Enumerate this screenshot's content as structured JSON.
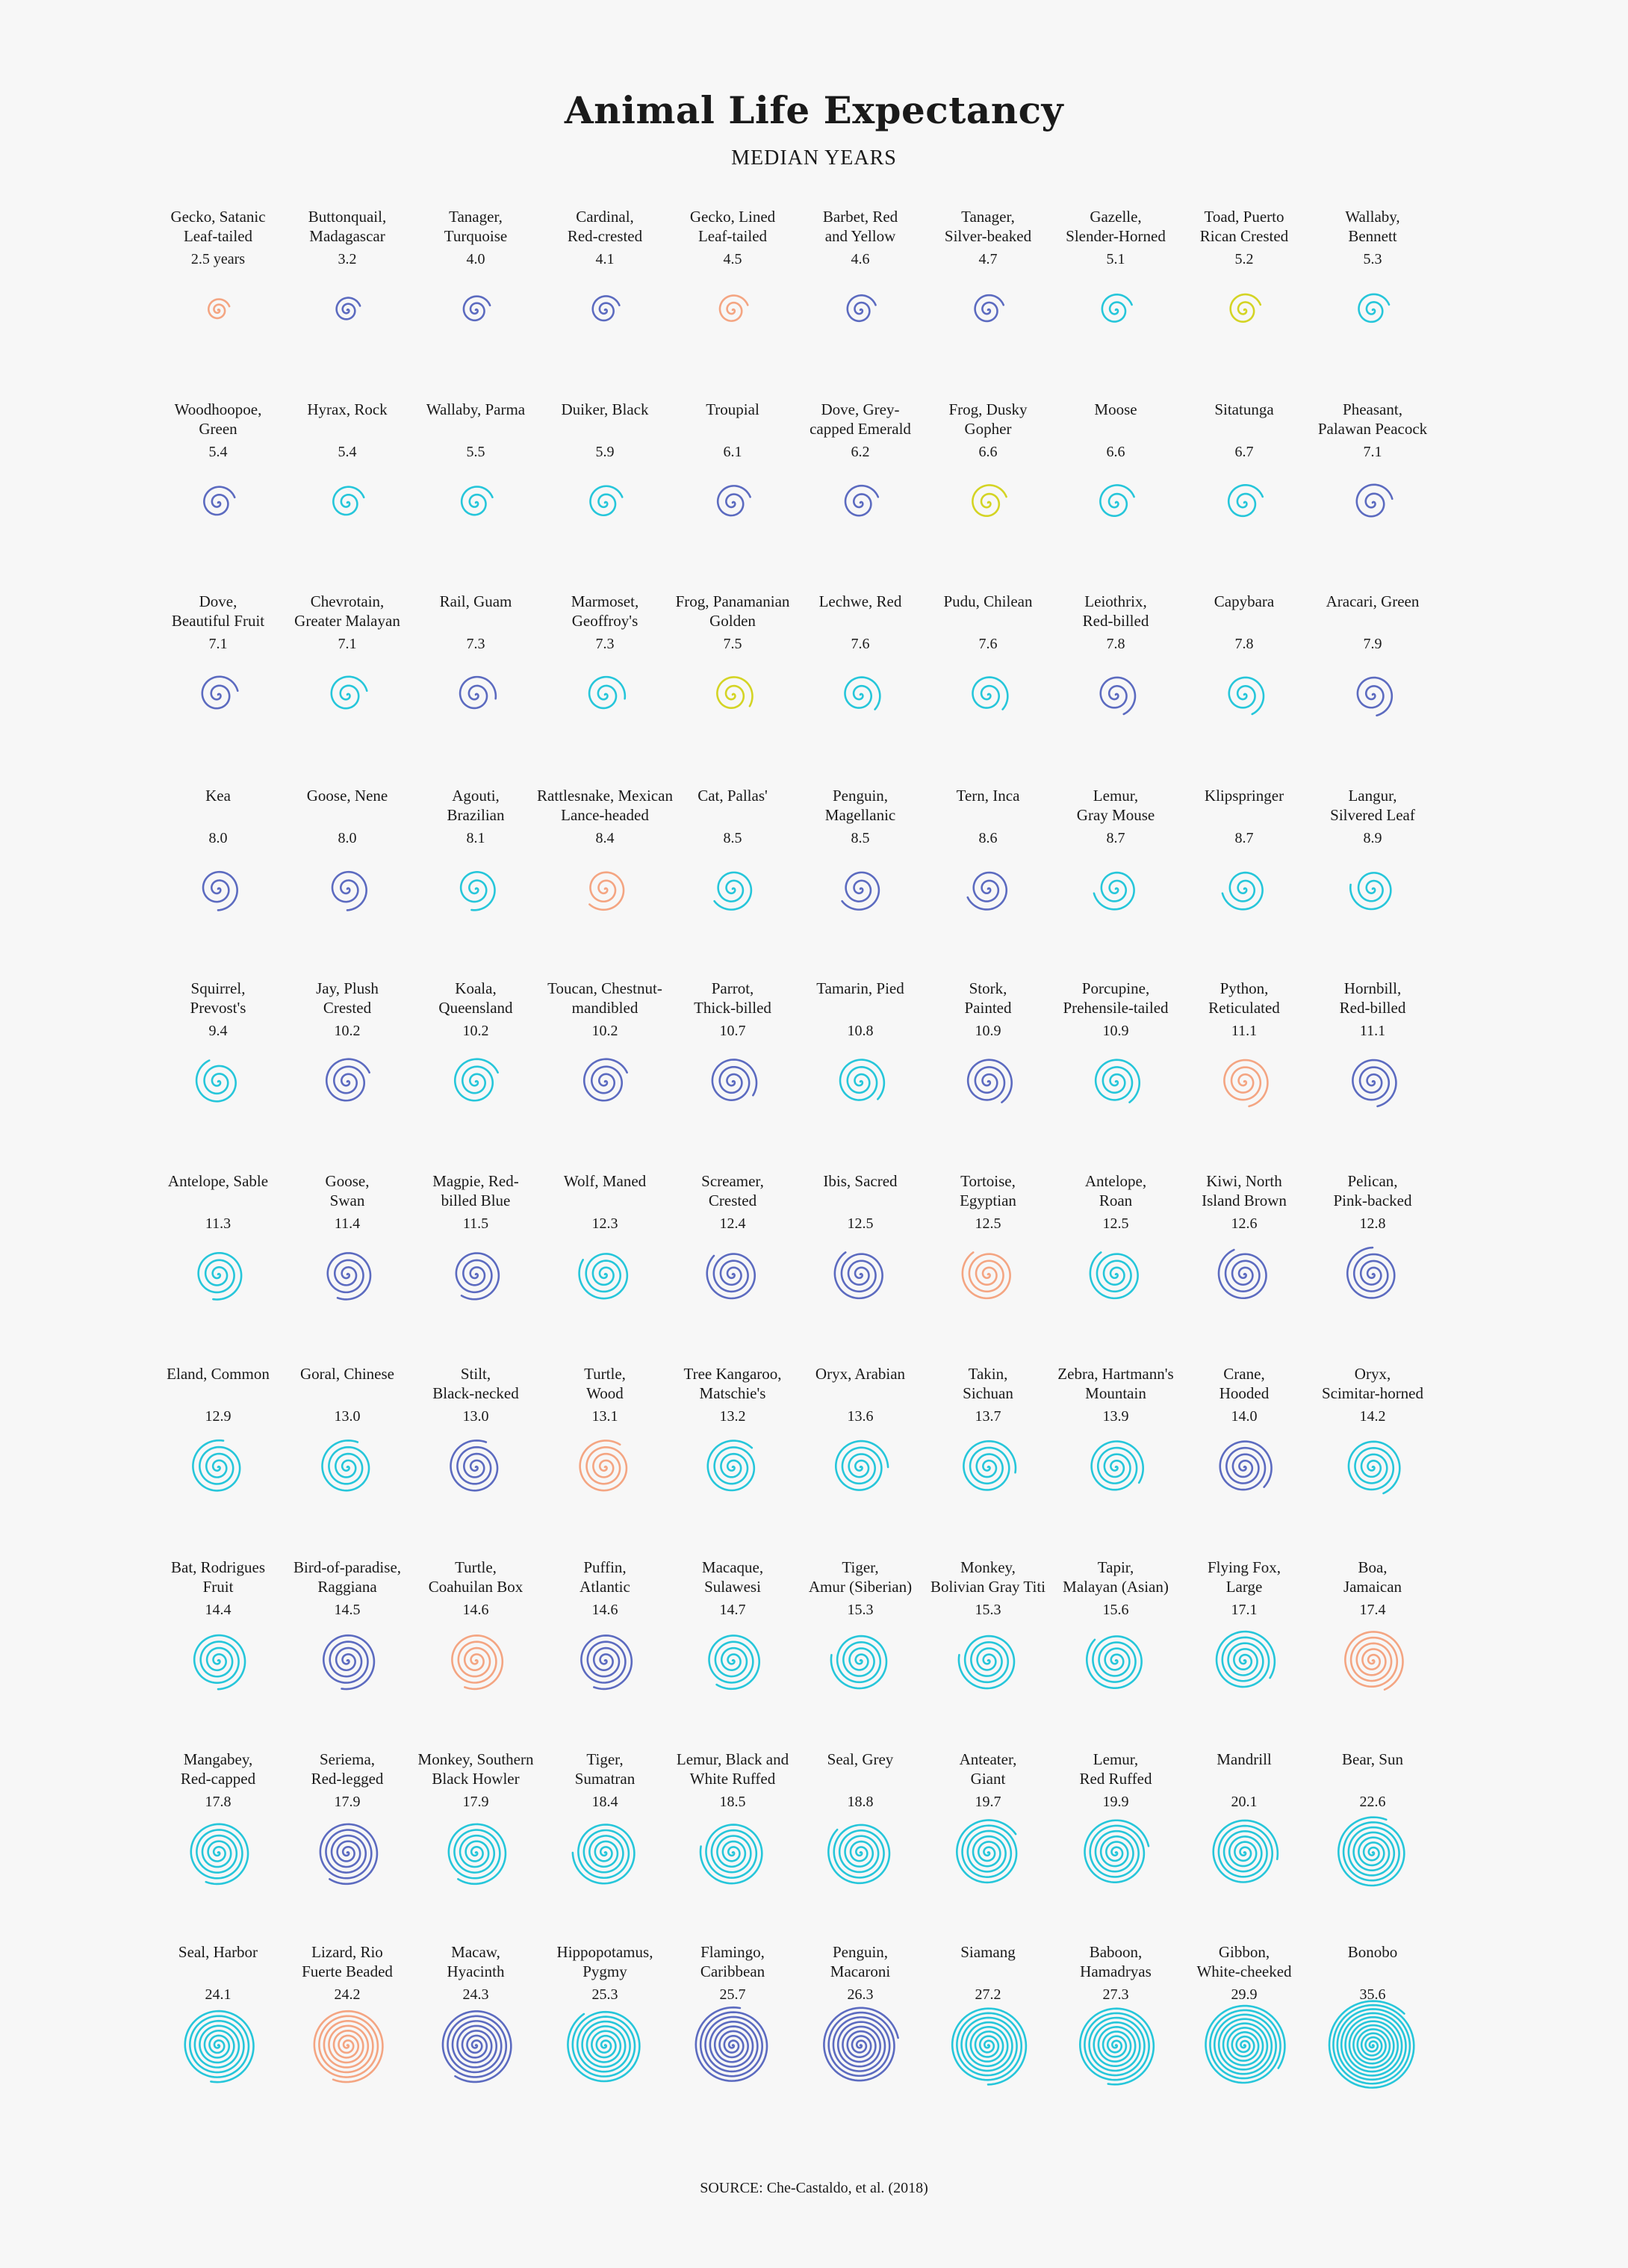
{
  "header": {
    "title": "Animal Life Expectancy",
    "subtitle": "MEDIAN YEARS"
  },
  "footer": {
    "source": "SOURCE: Che-Castaldo, et al. (2018)"
  },
  "colors": {
    "mammal": "#26c6da",
    "bird": "#5c6bc0",
    "reptile": "#f4a582",
    "amphibian": "#d4d424",
    "background": "#f7f7f7"
  },
  "chart_data": {
    "type": "spiral-grid",
    "title": "Animal Life Expectancy",
    "subtitle": "MEDIAN YEARS",
    "columns": 10,
    "animals": [
      {
        "name": [
          "Gecko, Satanic",
          "Leaf-tailed"
        ],
        "value_label": "2.5 years",
        "value": 2.5,
        "group": "reptile"
      },
      {
        "name": [
          "Buttonquail,",
          "Madagascar"
        ],
        "value_label": "3.2",
        "value": 3.2,
        "group": "bird"
      },
      {
        "name": [
          "Tanager,",
          "Turquoise"
        ],
        "value_label": "4.0",
        "value": 4.0,
        "group": "bird"
      },
      {
        "name": [
          "Cardinal,",
          "Red-crested"
        ],
        "value_label": "4.1",
        "value": 4.1,
        "group": "bird"
      },
      {
        "name": [
          "Gecko, Lined",
          "Leaf-tailed"
        ],
        "value_label": "4.5",
        "value": 4.5,
        "group": "reptile"
      },
      {
        "name": [
          "Barbet, Red",
          "and Yellow"
        ],
        "value_label": "4.6",
        "value": 4.6,
        "group": "bird"
      },
      {
        "name": [
          "Tanager,",
          "Silver-beaked"
        ],
        "value_label": "4.7",
        "value": 4.7,
        "group": "bird"
      },
      {
        "name": [
          "Gazelle,",
          "Slender-Horned"
        ],
        "value_label": "5.1",
        "value": 5.1,
        "group": "mammal"
      },
      {
        "name": [
          "Toad, Puerto",
          "Rican Crested"
        ],
        "value_label": "5.2",
        "value": 5.2,
        "group": "amphibian"
      },
      {
        "name": [
          "Wallaby,",
          "Bennett"
        ],
        "value_label": "5.3",
        "value": 5.3,
        "group": "mammal"
      },
      {
        "name": [
          "Woodhoopoe,",
          "Green"
        ],
        "value_label": "5.4",
        "value": 5.4,
        "group": "bird"
      },
      {
        "name": [
          "Hyrax, Rock"
        ],
        "value_label": "5.4",
        "value": 5.4,
        "group": "mammal"
      },
      {
        "name": [
          "Wallaby, Parma"
        ],
        "value_label": "5.5",
        "value": 5.5,
        "group": "mammal"
      },
      {
        "name": [
          "Duiker, Black"
        ],
        "value_label": "5.9",
        "value": 5.9,
        "group": "mammal"
      },
      {
        "name": [
          "Troupial"
        ],
        "value_label": "6.1",
        "value": 6.1,
        "group": "bird"
      },
      {
        "name": [
          "Dove, Grey-",
          "capped Emerald"
        ],
        "value_label": "6.2",
        "value": 6.2,
        "group": "bird"
      },
      {
        "name": [
          "Frog, Dusky",
          "Gopher"
        ],
        "value_label": "6.6",
        "value": 6.6,
        "group": "amphibian"
      },
      {
        "name": [
          "Moose"
        ],
        "value_label": "6.6",
        "value": 6.6,
        "group": "mammal"
      },
      {
        "name": [
          "Sitatunga"
        ],
        "value_label": "6.7",
        "value": 6.7,
        "group": "mammal"
      },
      {
        "name": [
          "Pheasant,",
          "Palawan Peacock"
        ],
        "value_label": "7.1",
        "value": 7.1,
        "group": "bird"
      },
      {
        "name": [
          "Dove,",
          "Beautiful Fruit"
        ],
        "value_label": "7.1",
        "value": 7.1,
        "group": "bird"
      },
      {
        "name": [
          "Chevrotain,",
          "Greater Malayan"
        ],
        "value_label": "7.1",
        "value": 7.1,
        "group": "mammal"
      },
      {
        "name": [
          "Rail, Guam"
        ],
        "value_label": "7.3",
        "value": 7.3,
        "group": "bird"
      },
      {
        "name": [
          "Marmoset,",
          "Geoffroy's"
        ],
        "value_label": "7.3",
        "value": 7.3,
        "group": "mammal"
      },
      {
        "name": [
          "Frog, Panamanian",
          "Golden"
        ],
        "value_label": "7.5",
        "value": 7.5,
        "group": "amphibian"
      },
      {
        "name": [
          "Lechwe, Red"
        ],
        "value_label": "7.6",
        "value": 7.6,
        "group": "mammal"
      },
      {
        "name": [
          "Pudu, Chilean"
        ],
        "value_label": "7.6",
        "value": 7.6,
        "group": "mammal"
      },
      {
        "name": [
          "Leiothrix,",
          "Red-billed"
        ],
        "value_label": "7.8",
        "value": 7.8,
        "group": "bird"
      },
      {
        "name": [
          "Capybara"
        ],
        "value_label": "7.8",
        "value": 7.8,
        "group": "mammal"
      },
      {
        "name": [
          "Aracari, Green"
        ],
        "value_label": "7.9",
        "value": 7.9,
        "group": "bird"
      },
      {
        "name": [
          "Kea"
        ],
        "value_label": "8.0",
        "value": 8.0,
        "group": "bird"
      },
      {
        "name": [
          "Goose, Nene"
        ],
        "value_label": "8.0",
        "value": 8.0,
        "group": "bird"
      },
      {
        "name": [
          "Agouti,",
          "Brazilian"
        ],
        "value_label": "8.1",
        "value": 8.1,
        "group": "mammal"
      },
      {
        "name": [
          "Rattlesnake, Mexican",
          "Lance-headed"
        ],
        "value_label": "8.4",
        "value": 8.4,
        "group": "reptile"
      },
      {
        "name": [
          "Cat, Pallas'"
        ],
        "value_label": "8.5",
        "value": 8.5,
        "group": "mammal"
      },
      {
        "name": [
          "Penguin,",
          "Magellanic"
        ],
        "value_label": "8.5",
        "value": 8.5,
        "group": "bird"
      },
      {
        "name": [
          "Tern, Inca"
        ],
        "value_label": "8.6",
        "value": 8.6,
        "group": "bird"
      },
      {
        "name": [
          "Lemur,",
          "Gray Mouse"
        ],
        "value_label": "8.7",
        "value": 8.7,
        "group": "mammal"
      },
      {
        "name": [
          "Klipspringer"
        ],
        "value_label": "8.7",
        "value": 8.7,
        "group": "mammal"
      },
      {
        "name": [
          "Langur,",
          "Silvered Leaf"
        ],
        "value_label": "8.9",
        "value": 8.9,
        "group": "mammal"
      },
      {
        "name": [
          "Squirrel,",
          "Prevost's"
        ],
        "value_label": "9.4",
        "value": 9.4,
        "group": "mammal"
      },
      {
        "name": [
          "Jay, Plush",
          "Crested"
        ],
        "value_label": "10.2",
        "value": 10.2,
        "group": "bird"
      },
      {
        "name": [
          "Koala,",
          "Queensland"
        ],
        "value_label": "10.2",
        "value": 10.2,
        "group": "mammal"
      },
      {
        "name": [
          "Toucan, Chestnut-",
          "mandibled"
        ],
        "value_label": "10.2",
        "value": 10.2,
        "group": "bird"
      },
      {
        "name": [
          "Parrot,",
          "Thick-billed"
        ],
        "value_label": "10.7",
        "value": 10.7,
        "group": "bird"
      },
      {
        "name": [
          "Tamarin, Pied"
        ],
        "value_label": "10.8",
        "value": 10.8,
        "group": "mammal"
      },
      {
        "name": [
          "Stork,",
          "Painted"
        ],
        "value_label": "10.9",
        "value": 10.9,
        "group": "bird"
      },
      {
        "name": [
          "Porcupine,",
          "Prehensile-tailed"
        ],
        "value_label": "10.9",
        "value": 10.9,
        "group": "mammal"
      },
      {
        "name": [
          "Python,",
          "Reticulated"
        ],
        "value_label": "11.1",
        "value": 11.1,
        "group": "reptile"
      },
      {
        "name": [
          "Hornbill,",
          "Red-billed"
        ],
        "value_label": "11.1",
        "value": 11.1,
        "group": "bird"
      },
      {
        "name": [
          "Antelope, Sable"
        ],
        "value_label": "11.3",
        "value": 11.3,
        "group": "mammal"
      },
      {
        "name": [
          "Goose,",
          "Swan"
        ],
        "value_label": "11.4",
        "value": 11.4,
        "group": "bird"
      },
      {
        "name": [
          "Magpie, Red-",
          "billed Blue"
        ],
        "value_label": "11.5",
        "value": 11.5,
        "group": "bird"
      },
      {
        "name": [
          "Wolf, Maned"
        ],
        "value_label": "12.3",
        "value": 12.3,
        "group": "mammal"
      },
      {
        "name": [
          "Screamer,",
          "Crested"
        ],
        "value_label": "12.4",
        "value": 12.4,
        "group": "bird"
      },
      {
        "name": [
          "Ibis, Sacred"
        ],
        "value_label": "12.5",
        "value": 12.5,
        "group": "bird"
      },
      {
        "name": [
          "Tortoise,",
          "Egyptian"
        ],
        "value_label": "12.5",
        "value": 12.5,
        "group": "reptile"
      },
      {
        "name": [
          "Antelope,",
          "Roan"
        ],
        "value_label": "12.5",
        "value": 12.5,
        "group": "mammal"
      },
      {
        "name": [
          "Kiwi, North",
          "Island Brown"
        ],
        "value_label": "12.6",
        "value": 12.6,
        "group": "bird"
      },
      {
        "name": [
          "Pelican,",
          "Pink-backed"
        ],
        "value_label": "12.8",
        "value": 12.8,
        "group": "bird"
      },
      {
        "name": [
          "Eland, Common"
        ],
        "value_label": "12.9",
        "value": 12.9,
        "group": "mammal"
      },
      {
        "name": [
          "Goral, Chinese"
        ],
        "value_label": "13.0",
        "value": 13.0,
        "group": "mammal"
      },
      {
        "name": [
          "Stilt,",
          "Black-necked"
        ],
        "value_label": "13.0",
        "value": 13.0,
        "group": "bird"
      },
      {
        "name": [
          "Turtle,",
          "Wood"
        ],
        "value_label": "13.1",
        "value": 13.1,
        "group": "reptile"
      },
      {
        "name": [
          "Tree Kangaroo,",
          "Matschie's"
        ],
        "value_label": "13.2",
        "value": 13.2,
        "group": "mammal"
      },
      {
        "name": [
          "Oryx, Arabian"
        ],
        "value_label": "13.6",
        "value": 13.6,
        "group": "mammal"
      },
      {
        "name": [
          "Takin,",
          "Sichuan"
        ],
        "value_label": "13.7",
        "value": 13.7,
        "group": "mammal"
      },
      {
        "name": [
          "Zebra, Hartmann's",
          "Mountain"
        ],
        "value_label": "13.9",
        "value": 13.9,
        "group": "mammal"
      },
      {
        "name": [
          "Crane,",
          "Hooded"
        ],
        "value_label": "14.0",
        "value": 14.0,
        "group": "bird"
      },
      {
        "name": [
          "Oryx,",
          "Scimitar-horned"
        ],
        "value_label": "14.2",
        "value": 14.2,
        "group": "mammal"
      },
      {
        "name": [
          "Bat, Rodrigues",
          "Fruit"
        ],
        "value_label": "14.4",
        "value": 14.4,
        "group": "mammal"
      },
      {
        "name": [
          "Bird-of-paradise,",
          "Raggiana"
        ],
        "value_label": "14.5",
        "value": 14.5,
        "group": "bird"
      },
      {
        "name": [
          "Turtle,",
          "Coahuilan Box"
        ],
        "value_label": "14.6",
        "value": 14.6,
        "group": "reptile"
      },
      {
        "name": [
          "Puffin,",
          "Atlantic"
        ],
        "value_label": "14.6",
        "value": 14.6,
        "group": "bird"
      },
      {
        "name": [
          "Macaque,",
          "Sulawesi"
        ],
        "value_label": "14.7",
        "value": 14.7,
        "group": "mammal"
      },
      {
        "name": [
          "Tiger,",
          "Amur (Siberian)"
        ],
        "value_label": "15.3",
        "value": 15.3,
        "group": "mammal"
      },
      {
        "name": [
          "Monkey,",
          "Bolivian Gray Titi"
        ],
        "value_label": "15.3",
        "value": 15.3,
        "group": "mammal"
      },
      {
        "name": [
          "Tapir,",
          "Malayan (Asian)"
        ],
        "value_label": "15.6",
        "value": 15.6,
        "group": "mammal"
      },
      {
        "name": [
          "Flying Fox,",
          "Large"
        ],
        "value_label": "17.1",
        "value": 17.1,
        "group": "mammal"
      },
      {
        "name": [
          "Boa,",
          "Jamaican"
        ],
        "value_label": "17.4",
        "value": 17.4,
        "group": "reptile"
      },
      {
        "name": [
          "Mangabey,",
          "Red-capped"
        ],
        "value_label": "17.8",
        "value": 17.8,
        "group": "mammal"
      },
      {
        "name": [
          "Seriema,",
          "Red-legged"
        ],
        "value_label": "17.9",
        "value": 17.9,
        "group": "bird"
      },
      {
        "name": [
          "Monkey, Southern",
          "Black Howler"
        ],
        "value_label": "17.9",
        "value": 17.9,
        "group": "mammal"
      },
      {
        "name": [
          "Tiger,",
          "Sumatran"
        ],
        "value_label": "18.4",
        "value": 18.4,
        "group": "mammal"
      },
      {
        "name": [
          "Lemur, Black and",
          "White Ruffed"
        ],
        "value_label": "18.5",
        "value": 18.5,
        "group": "mammal"
      },
      {
        "name": [
          "Seal, Grey"
        ],
        "value_label": "18.8",
        "value": 18.8,
        "group": "mammal"
      },
      {
        "name": [
          "Anteater,",
          "Giant"
        ],
        "value_label": "19.7",
        "value": 19.7,
        "group": "mammal"
      },
      {
        "name": [
          "Lemur,",
          "Red Ruffed"
        ],
        "value_label": "19.9",
        "value": 19.9,
        "group": "mammal"
      },
      {
        "name": [
          "Mandrill"
        ],
        "value_label": "20.1",
        "value": 20.1,
        "group": "mammal"
      },
      {
        "name": [
          "Bear, Sun"
        ],
        "value_label": "22.6",
        "value": 22.6,
        "group": "mammal"
      },
      {
        "name": [
          "Seal, Harbor"
        ],
        "value_label": "24.1",
        "value": 24.1,
        "group": "mammal"
      },
      {
        "name": [
          "Lizard, Rio",
          "Fuerte Beaded"
        ],
        "value_label": "24.2",
        "value": 24.2,
        "group": "reptile"
      },
      {
        "name": [
          "Macaw,",
          "Hyacinth"
        ],
        "value_label": "24.3",
        "value": 24.3,
        "group": "bird"
      },
      {
        "name": [
          "Hippopotamus,",
          "Pygmy"
        ],
        "value_label": "25.3",
        "value": 25.3,
        "group": "mammal"
      },
      {
        "name": [
          "Flamingo,",
          "Caribbean"
        ],
        "value_label": "25.7",
        "value": 25.7,
        "group": "bird"
      },
      {
        "name": [
          "Penguin,",
          "Macaroni"
        ],
        "value_label": "26.3",
        "value": 26.3,
        "group": "bird"
      },
      {
        "name": [
          "Siamang"
        ],
        "value_label": "27.2",
        "value": 27.2,
        "group": "mammal"
      },
      {
        "name": [
          "Baboon,",
          "Hamadryas"
        ],
        "value_label": "27.3",
        "value": 27.3,
        "group": "mammal"
      },
      {
        "name": [
          "Gibbon,",
          "White-cheeked"
        ],
        "value_label": "29.9",
        "value": 29.9,
        "group": "mammal"
      },
      {
        "name": [
          "Bonobo"
        ],
        "value_label": "35.6",
        "value": 35.6,
        "group": "mammal"
      }
    ]
  }
}
